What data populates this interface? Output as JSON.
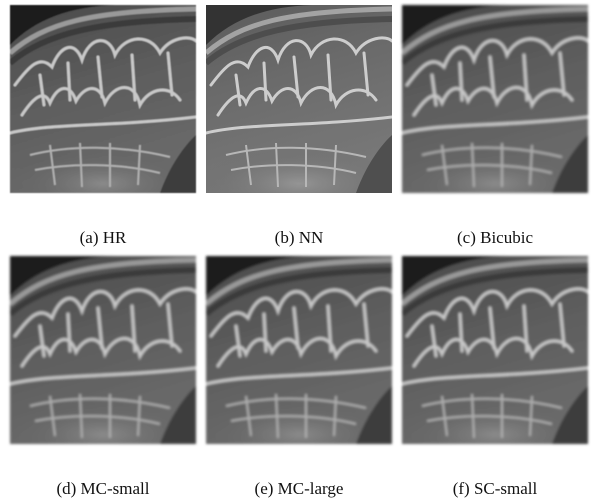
{
  "panels": [
    {
      "label": "(a) HR"
    },
    {
      "label": "(b) NN"
    },
    {
      "label": "(c) Bicubic"
    },
    {
      "label": "(d) MC-small"
    },
    {
      "label": "(e) MC-large"
    },
    {
      "label": "(f) SC-small"
    }
  ]
}
